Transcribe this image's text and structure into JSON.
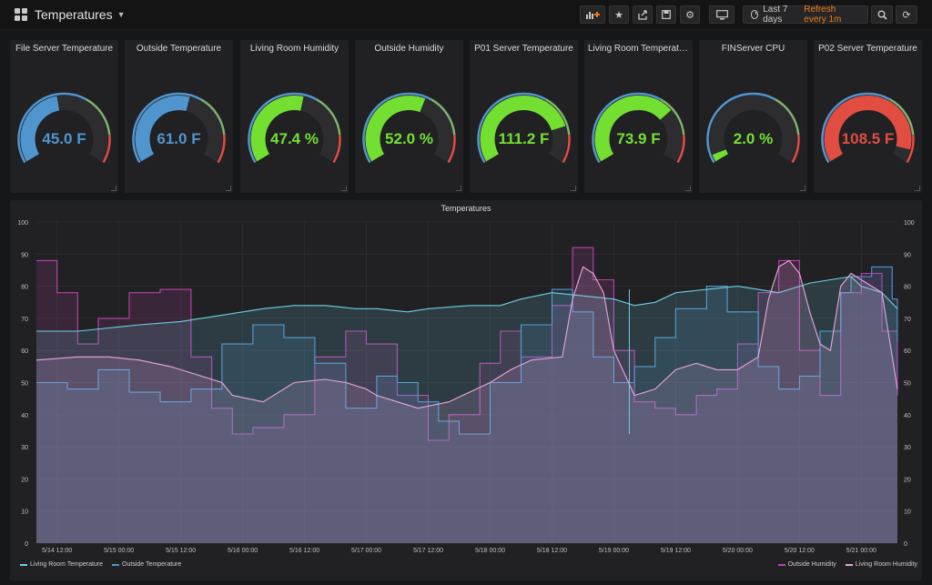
{
  "header": {
    "title": "Temperatures",
    "time_range": "Last 7 days",
    "refresh": "Refresh every 1m"
  },
  "colors": {
    "blue": "#5195ce",
    "green": "#7eb26d",
    "bright_green": "#73e031",
    "red": "#e24d42",
    "teal": "#6ed0e0",
    "purple": "#ba43a9",
    "pink": "#e9a6e0"
  },
  "gauges": [
    {
      "title": "File Server Temperature",
      "value": "45.0 F",
      "fraction": 0.46,
      "color": "#5195ce"
    },
    {
      "title": "Outside Temperature",
      "value": "61.0 F",
      "fraction": 0.56,
      "color": "#5195ce"
    },
    {
      "title": "Living Room Humidity",
      "value": "47.4 %",
      "fraction": 0.55,
      "color": "#73e031"
    },
    {
      "title": "Outside Humidity",
      "value": "52.0 %",
      "fraction": 0.59,
      "color": "#73e031"
    },
    {
      "title": "P01 Server Temperature",
      "value": "111.2 F",
      "fraction": 0.8,
      "color": "#73e031"
    },
    {
      "title": "Living Room Temperatu...",
      "value": "73.9 F",
      "fraction": 0.7,
      "color": "#73e031"
    },
    {
      "title": "FINServer CPU",
      "value": "2.0 %",
      "fraction": 0.04,
      "color": "#73e031"
    },
    {
      "title": "P02 Server Temperature",
      "value": "108.5 F",
      "fraction": 0.93,
      "color": "#e24d42"
    }
  ],
  "chart_data": {
    "type": "line",
    "title": "Temperatures",
    "ylim": [
      0,
      100
    ],
    "yticks": [
      "100",
      "90",
      "80",
      "70",
      "60",
      "50",
      "40",
      "30",
      "20",
      "10",
      "0"
    ],
    "xticks": [
      "5/14 12:00",
      "5/15 00:00",
      "5/15 12:00",
      "5/16 00:00",
      "5/16 12:00",
      "5/17 00:00",
      "5/17 12:00",
      "5/18 00:00",
      "5/18 12:00",
      "5/19 00:00",
      "5/19 12:00",
      "5/20 00:00",
      "5/20 12:00",
      "5/21 00:00"
    ],
    "x_range_hours": [
      -4,
      163
    ],
    "series": [
      {
        "name": "Living Room Temperature",
        "color": "#6ed0e0",
        "axis": "left",
        "values": [
          [
            -4,
            66
          ],
          [
            4,
            66
          ],
          [
            10,
            67
          ],
          [
            16,
            68
          ],
          [
            24,
            69
          ],
          [
            32,
            71
          ],
          [
            40,
            73
          ],
          [
            46,
            74
          ],
          [
            52,
            74
          ],
          [
            58,
            73
          ],
          [
            62,
            73
          ],
          [
            68,
            72
          ],
          [
            72,
            73
          ],
          [
            80,
            74
          ],
          [
            86,
            74
          ],
          [
            90,
            76
          ],
          [
            96,
            78
          ],
          [
            102,
            77
          ],
          [
            108,
            76
          ],
          [
            112,
            74
          ],
          [
            116,
            75
          ],
          [
            120,
            78
          ],
          [
            126,
            79
          ],
          [
            132,
            80
          ],
          [
            136,
            79
          ],
          [
            140,
            78
          ],
          [
            146,
            81
          ],
          [
            150,
            82
          ],
          [
            154,
            83
          ],
          [
            156,
            80
          ],
          [
            158,
            79
          ],
          [
            160,
            78
          ],
          [
            163,
            73
          ]
        ]
      },
      {
        "name": "Outside Temperature",
        "color": "#5195ce",
        "axis": "left",
        "values": [
          [
            -4,
            50
          ],
          [
            2,
            48
          ],
          [
            8,
            54
          ],
          [
            14,
            47
          ],
          [
            20,
            44
          ],
          [
            26,
            48
          ],
          [
            32,
            62
          ],
          [
            38,
            68
          ],
          [
            44,
            64
          ],
          [
            50,
            56
          ],
          [
            56,
            42
          ],
          [
            62,
            52
          ],
          [
            66,
            50
          ],
          [
            70,
            44
          ],
          [
            74,
            38
          ],
          [
            78,
            34
          ],
          [
            84,
            50
          ],
          [
            90,
            68
          ],
          [
            96,
            79
          ],
          [
            100,
            72
          ],
          [
            104,
            58
          ],
          [
            108,
            50
          ],
          [
            112,
            55
          ],
          [
            116,
            64
          ],
          [
            120,
            73
          ],
          [
            126,
            80
          ],
          [
            130,
            72
          ],
          [
            136,
            55
          ],
          [
            140,
            48
          ],
          [
            144,
            52
          ],
          [
            148,
            66
          ],
          [
            152,
            78
          ],
          [
            154,
            83
          ],
          [
            158,
            86
          ],
          [
            162,
            76
          ],
          [
            163,
            63
          ]
        ]
      },
      {
        "name": "Outside Humidity",
        "color": "#ba43a9",
        "axis": "right",
        "values": [
          [
            -4,
            88
          ],
          [
            0,
            78
          ],
          [
            4,
            62
          ],
          [
            8,
            70
          ],
          [
            14,
            78
          ],
          [
            20,
            79
          ],
          [
            26,
            58
          ],
          [
            30,
            42
          ],
          [
            34,
            34
          ],
          [
            38,
            36
          ],
          [
            44,
            40
          ],
          [
            50,
            58
          ],
          [
            56,
            66
          ],
          [
            60,
            62
          ],
          [
            66,
            46
          ],
          [
            72,
            32
          ],
          [
            76,
            40
          ],
          [
            82,
            56
          ],
          [
            86,
            66
          ],
          [
            90,
            58
          ],
          [
            96,
            74
          ],
          [
            100,
            92
          ],
          [
            104,
            82
          ],
          [
            108,
            60
          ],
          [
            112,
            44
          ],
          [
            116,
            42
          ],
          [
            120,
            40
          ],
          [
            124,
            46
          ],
          [
            128,
            48
          ],
          [
            132,
            62
          ],
          [
            136,
            78
          ],
          [
            140,
            88
          ],
          [
            144,
            60
          ],
          [
            148,
            46
          ],
          [
            152,
            78
          ],
          [
            156,
            84
          ],
          [
            160,
            66
          ],
          [
            163,
            46
          ]
        ]
      },
      {
        "name": "Living Room Humidity",
        "color": "#e9a6e0",
        "axis": "right",
        "values": [
          [
            -4,
            57
          ],
          [
            4,
            58
          ],
          [
            10,
            58
          ],
          [
            16,
            57
          ],
          [
            22,
            55
          ],
          [
            28,
            52
          ],
          [
            32,
            50
          ],
          [
            34,
            46
          ],
          [
            40,
            44
          ],
          [
            46,
            50
          ],
          [
            52,
            51
          ],
          [
            56,
            50
          ],
          [
            60,
            48
          ],
          [
            62,
            46
          ],
          [
            66,
            44
          ],
          [
            70,
            42
          ],
          [
            76,
            44
          ],
          [
            80,
            47
          ],
          [
            84,
            50
          ],
          [
            88,
            54
          ],
          [
            92,
            57
          ],
          [
            98,
            58
          ],
          [
            100,
            76
          ],
          [
            102,
            86
          ],
          [
            104,
            84
          ],
          [
            106,
            78
          ],
          [
            108,
            60
          ],
          [
            112,
            46
          ],
          [
            116,
            48
          ],
          [
            120,
            54
          ],
          [
            124,
            56
          ],
          [
            128,
            54
          ],
          [
            132,
            54
          ],
          [
            136,
            58
          ],
          [
            138,
            76
          ],
          [
            140,
            86
          ],
          [
            142,
            88
          ],
          [
            144,
            84
          ],
          [
            146,
            72
          ],
          [
            148,
            62
          ],
          [
            150,
            60
          ],
          [
            152,
            80
          ],
          [
            154,
            84
          ],
          [
            158,
            80
          ],
          [
            160,
            78
          ],
          [
            163,
            48
          ]
        ]
      }
    ]
  }
}
